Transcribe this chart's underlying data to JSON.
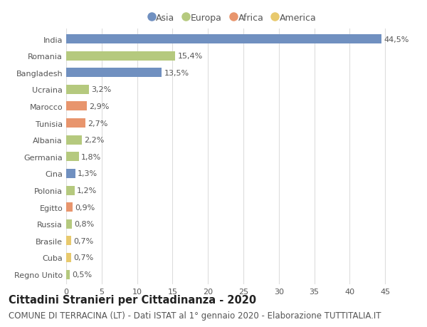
{
  "countries": [
    "India",
    "Romania",
    "Bangladesh",
    "Ucraina",
    "Marocco",
    "Tunisia",
    "Albania",
    "Germania",
    "Cina",
    "Polonia",
    "Egitto",
    "Russia",
    "Brasile",
    "Cuba",
    "Regno Unito"
  ],
  "values": [
    44.5,
    15.4,
    13.5,
    3.2,
    2.9,
    2.7,
    2.2,
    1.8,
    1.3,
    1.2,
    0.9,
    0.8,
    0.7,
    0.7,
    0.5
  ],
  "labels": [
    "44,5%",
    "15,4%",
    "13,5%",
    "3,2%",
    "2,9%",
    "2,7%",
    "2,2%",
    "1,8%",
    "1,3%",
    "1,2%",
    "0,9%",
    "0,8%",
    "0,7%",
    "0,7%",
    "0,5%"
  ],
  "continents": [
    "Asia",
    "Europa",
    "Asia",
    "Europa",
    "Africa",
    "Africa",
    "Europa",
    "Europa",
    "Asia",
    "Europa",
    "Africa",
    "Europa",
    "America",
    "America",
    "Europa"
  ],
  "colors": {
    "Asia": "#7090c0",
    "Europa": "#b5c97e",
    "Africa": "#e8956d",
    "America": "#e8c96d"
  },
  "legend_labels": [
    "Asia",
    "Europa",
    "Africa",
    "America"
  ],
  "legend_colors": [
    "#7090c0",
    "#b5c97e",
    "#e8956d",
    "#e8c96d"
  ],
  "title": "Cittadini Stranieri per Cittadinanza - 2020",
  "subtitle": "COMUNE DI TERRACINA (LT) - Dati ISTAT al 1° gennaio 2020 - Elaborazione TUTTITALIA.IT",
  "xlim": [
    0,
    47
  ],
  "xticks": [
    0,
    5,
    10,
    15,
    20,
    25,
    30,
    35,
    40,
    45
  ],
  "background_color": "#ffffff",
  "grid_color": "#dddddd",
  "text_color": "#555555",
  "bar_height": 0.55,
  "title_fontsize": 10.5,
  "subtitle_fontsize": 8.5,
  "label_fontsize": 8,
  "tick_fontsize": 8
}
